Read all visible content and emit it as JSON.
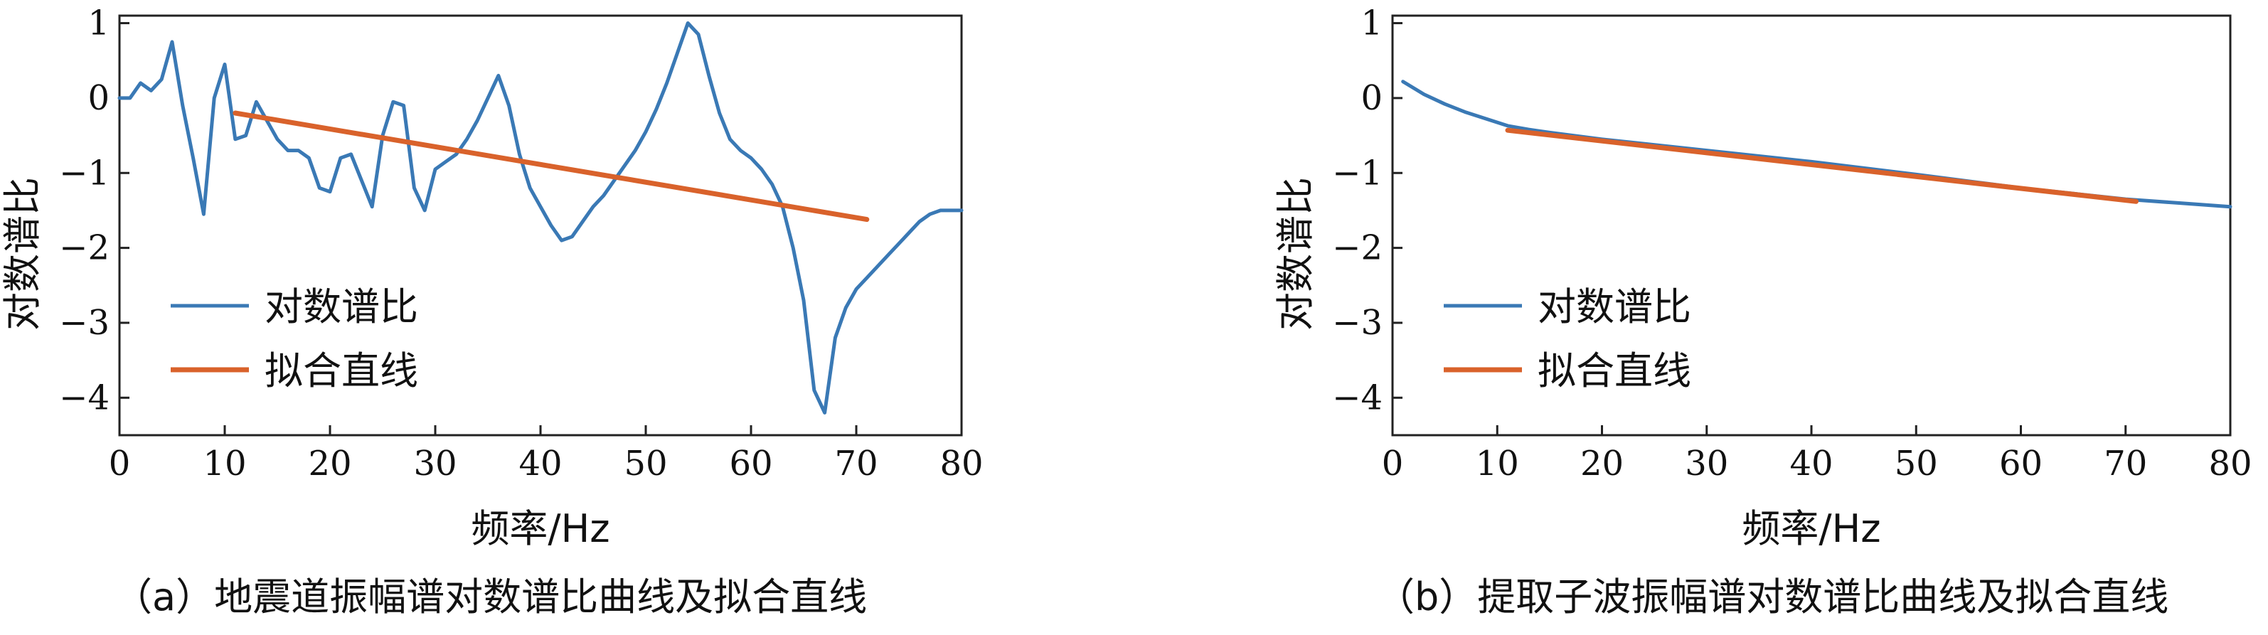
{
  "colors": {
    "series_blue": "#3a79b5",
    "series_orange": "#d9622b",
    "axis": "#222222",
    "background": "#ffffff"
  },
  "chart_data": [
    {
      "type": "line",
      "panel": "a",
      "caption": "（a）地震道振幅谱对数谱比曲线及拟合直线",
      "xlabel": "频率/Hz",
      "ylabel": "对数谱比",
      "xlim": [
        0,
        80
      ],
      "ylim": [
        -4.5,
        1.1
      ],
      "xticks": [
        0,
        10,
        20,
        30,
        40,
        50,
        60,
        70,
        80
      ],
      "yticks": [
        1,
        0,
        -1,
        -2,
        -3,
        -4
      ],
      "grid": false,
      "legend_position": "lower-left",
      "series": [
        {
          "name": "对数谱比",
          "color": "#3a79b5",
          "x": [
            0,
            1,
            2,
            3,
            4,
            5,
            6,
            7,
            8,
            9,
            10,
            11,
            12,
            13,
            14,
            15,
            16,
            17,
            18,
            19,
            20,
            21,
            22,
            23,
            24,
            25,
            26,
            27,
            28,
            29,
            30,
            31,
            32,
            33,
            34,
            35,
            36,
            37,
            38,
            39,
            40,
            41,
            42,
            43,
            44,
            45,
            46,
            47,
            48,
            49,
            50,
            51,
            52,
            53,
            54,
            55,
            56,
            57,
            58,
            59,
            60,
            61,
            62,
            63,
            64,
            65,
            66,
            67,
            68,
            69,
            70,
            71,
            72,
            73,
            74,
            75,
            76,
            77,
            78,
            79,
            80
          ],
          "y": [
            0.0,
            0.0,
            0.2,
            0.1,
            0.25,
            0.75,
            -0.1,
            -0.8,
            -1.55,
            0.0,
            0.45,
            -0.55,
            -0.5,
            -0.05,
            -0.3,
            -0.55,
            -0.7,
            -0.7,
            -0.8,
            -1.2,
            -1.25,
            -0.8,
            -0.75,
            -1.1,
            -1.45,
            -0.5,
            -0.05,
            -0.1,
            -1.2,
            -1.5,
            -0.95,
            -0.85,
            -0.75,
            -0.55,
            -0.3,
            0.0,
            0.3,
            -0.1,
            -0.75,
            -1.2,
            -1.45,
            -1.7,
            -1.9,
            -1.85,
            -1.65,
            -1.45,
            -1.3,
            -1.1,
            -0.9,
            -0.7,
            -0.45,
            -0.15,
            0.2,
            0.6,
            1.0,
            0.85,
            0.3,
            -0.2,
            -0.55,
            -0.7,
            -0.8,
            -0.95,
            -1.15,
            -1.45,
            -2.0,
            -2.7,
            -3.9,
            -4.2,
            -3.2,
            -2.8,
            -2.55,
            -2.4,
            -2.25,
            -2.1,
            -1.95,
            -1.8,
            -1.65,
            -1.55,
            -1.5,
            -1.5,
            -1.5
          ]
        },
        {
          "name": "拟合直线",
          "color": "#d9622b",
          "x": [
            11,
            71
          ],
          "y": [
            -0.2,
            -1.62
          ]
        }
      ]
    },
    {
      "type": "line",
      "panel": "b",
      "caption": "（b）提取子波振幅谱对数谱比曲线及拟合直线",
      "xlabel": "频率/Hz",
      "ylabel": "对数谱比",
      "xlim": [
        0,
        80
      ],
      "ylim": [
        -4.5,
        1.1
      ],
      "xticks": [
        0,
        10,
        20,
        30,
        40,
        50,
        60,
        70,
        80
      ],
      "yticks": [
        1,
        0,
        -1,
        -2,
        -3,
        -4
      ],
      "grid": false,
      "legend_position": "lower-left",
      "series": [
        {
          "name": "对数谱比",
          "color": "#3a79b5",
          "x": [
            1,
            3,
            5,
            7,
            9,
            11,
            13,
            15,
            20,
            30,
            40,
            50,
            60,
            70,
            75,
            80
          ],
          "y": [
            0.22,
            0.05,
            -0.08,
            -0.19,
            -0.28,
            -0.37,
            -0.42,
            -0.46,
            -0.55,
            -0.7,
            -0.85,
            -1.02,
            -1.2,
            -1.35,
            -1.4,
            -1.45
          ]
        },
        {
          "name": "拟合直线",
          "color": "#d9622b",
          "x": [
            11,
            71
          ],
          "y": [
            -0.43,
            -1.38
          ]
        }
      ]
    }
  ]
}
